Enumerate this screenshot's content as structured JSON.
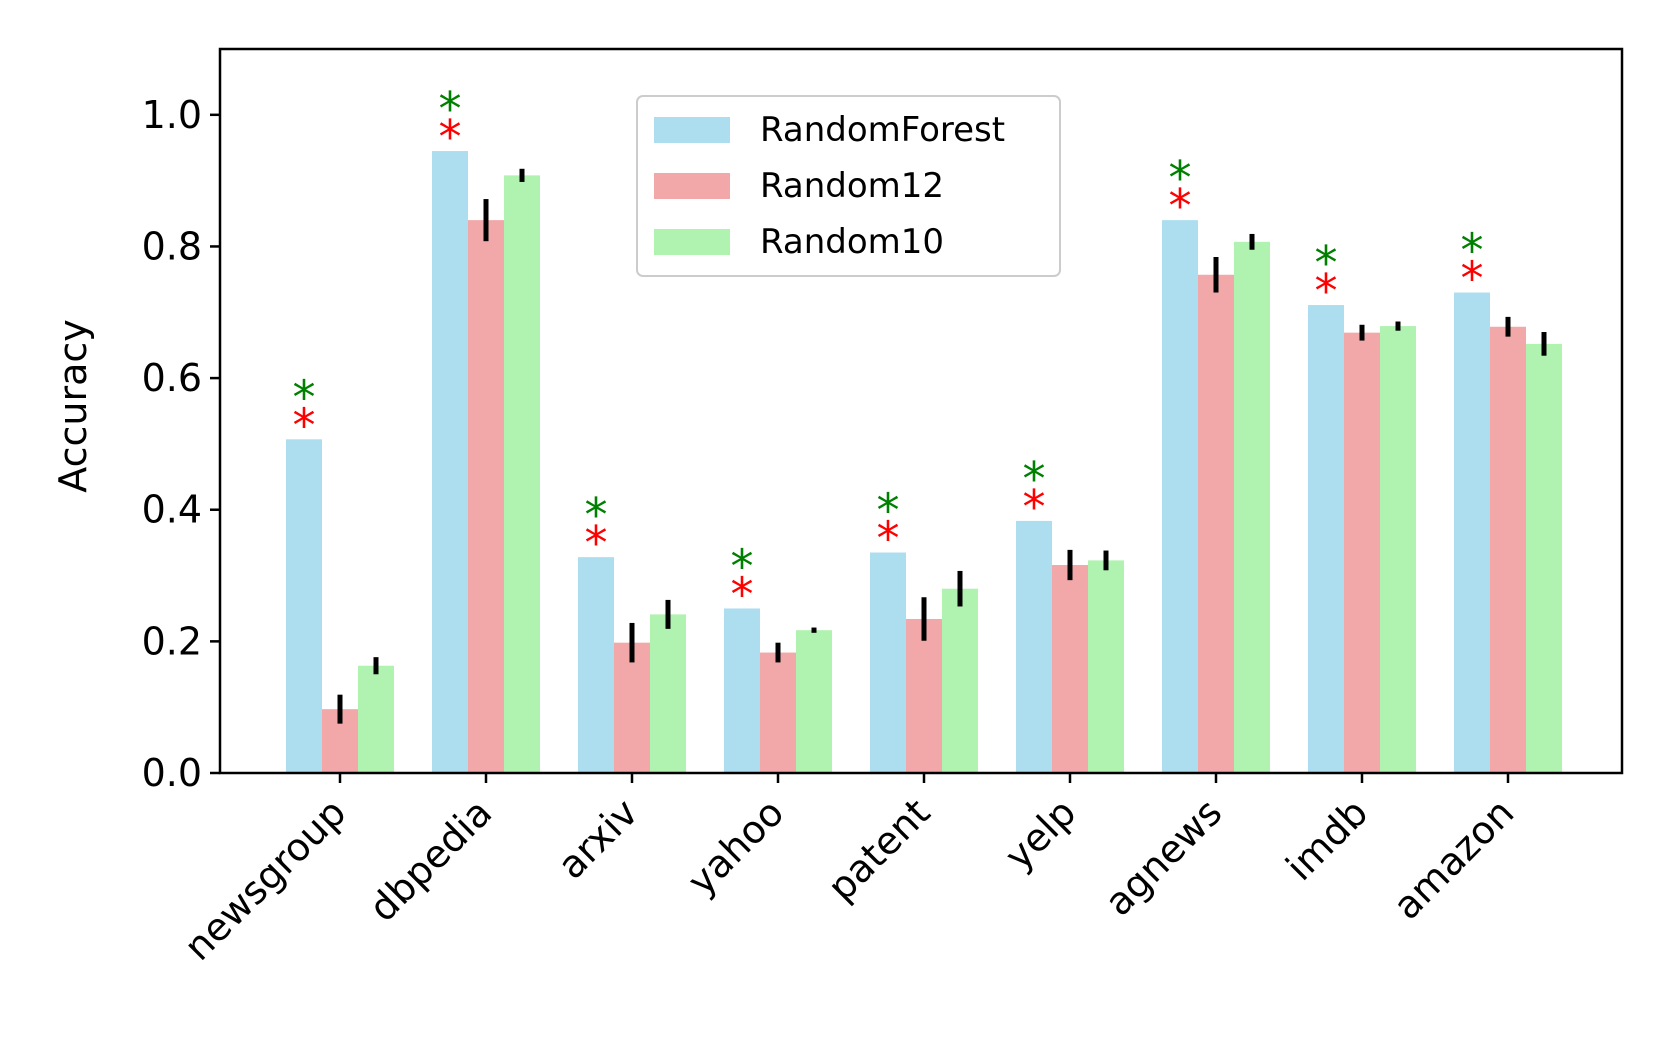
{
  "chart_data": {
    "type": "bar",
    "title": "",
    "xlabel": "",
    "ylabel": "Accuracy",
    "ylim": [
      0,
      1.1
    ],
    "yticks": [
      0.0,
      0.2,
      0.4,
      0.6,
      0.8,
      1.0
    ],
    "ytick_labels": [
      "0.0",
      "0.2",
      "0.4",
      "0.6",
      "0.8",
      "1.0"
    ],
    "grid": false,
    "legend_position": "top-center",
    "categories": [
      "newsgroup",
      "dbpedia",
      "arxiv",
      "yahoo",
      "patent",
      "yelp",
      "agnews",
      "imdb",
      "amazon"
    ],
    "series": [
      {
        "name": "RandomForest",
        "color": "#ADDEF0",
        "values": [
          0.507,
          0.945,
          0.328,
          0.25,
          0.335,
          0.383,
          0.84,
          0.711,
          0.73
        ],
        "errors": [
          0,
          0,
          0,
          0,
          0,
          0,
          0,
          0,
          0
        ]
      },
      {
        "name": "Random12",
        "color": "#F2A8A8",
        "values": [
          0.097,
          0.84,
          0.198,
          0.183,
          0.234,
          0.316,
          0.757,
          0.669,
          0.678
        ],
        "errors": [
          0.022,
          0.032,
          0.03,
          0.015,
          0.033,
          0.023,
          0.027,
          0.012,
          0.015
        ]
      },
      {
        "name": "Random10",
        "color": "#B0F2B0",
        "values": [
          0.163,
          0.908,
          0.241,
          0.217,
          0.28,
          0.323,
          0.807,
          0.679,
          0.652
        ],
        "errors": [
          0.013,
          0.01,
          0.022,
          0.004,
          0.027,
          0.015,
          0.012,
          0.007,
          0.018
        ]
      }
    ],
    "annotations": {
      "symbol": "*",
      "colors": [
        "#FF0000",
        "#008000"
      ],
      "note": "Red and green asterisks shown above every RandomForest bar"
    }
  }
}
